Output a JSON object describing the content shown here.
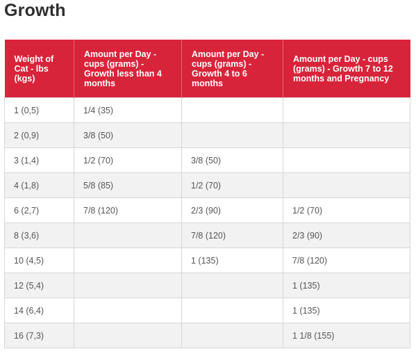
{
  "page": {
    "title": "Growth"
  },
  "table": {
    "headers": [
      "Weight of Cat - lbs (kgs)",
      "Amount per Day - cups (grams) - Growth less than 4 months",
      "Amount per Day - cups (grams) - Growth 4 to 6 months",
      "Amount per Day - cups (grams) - Growth 7 to 12 months and Pregnancy"
    ],
    "rows": [
      [
        "1 (0,5)",
        "1/4 (35)",
        "",
        ""
      ],
      [
        "2 (0,9)",
        "3/8 (50)",
        "",
        ""
      ],
      [
        "3 (1,4)",
        "1/2 (70)",
        "3/8 (50)",
        ""
      ],
      [
        "4 (1,8)",
        "5/8 (85)",
        "1/2 (70)",
        ""
      ],
      [
        "6 (2,7)",
        "7/8 (120)",
        "2/3 (90)",
        "1/2 (70)"
      ],
      [
        "8 (3,6)",
        "",
        "7/8 (120)",
        "2/3 (90)"
      ],
      [
        "10 (4,5)",
        "",
        "1 (135)",
        "7/8 (120)"
      ],
      [
        "12 (5,4)",
        "",
        "",
        "1 (135)"
      ],
      [
        "14 (6,4)",
        "",
        "",
        "1 (135)"
      ],
      [
        "16 (7,3)",
        "",
        "",
        "1 1/8 (155)"
      ]
    ]
  },
  "colors": {
    "header_background": "#d8243a",
    "header_text": "#ffffff",
    "stripe_background": "#f2f2f2",
    "border": "#d6d6d6"
  }
}
